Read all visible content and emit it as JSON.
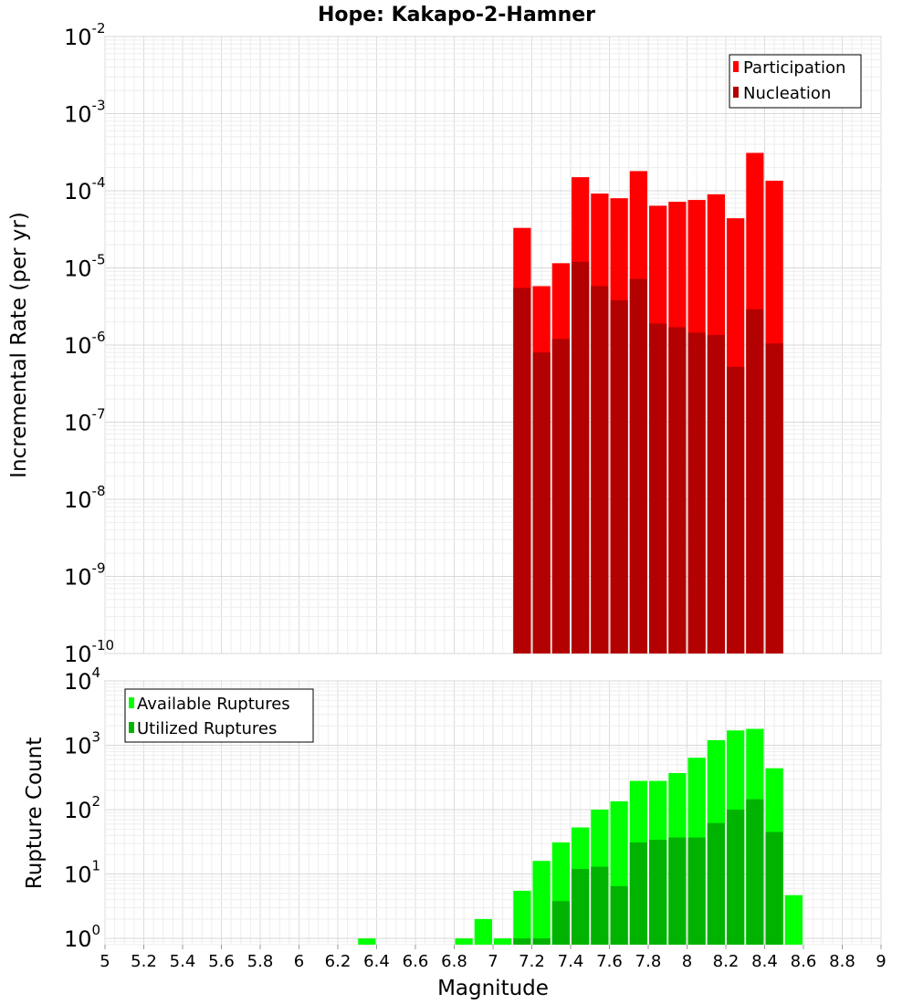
{
  "chart_data": [
    {
      "type": "bar",
      "title": "Hope: Kakapo-2-Hamner",
      "ylabel": "Incremental Rate (per yr)",
      "xlabel": "",
      "yscale": "log",
      "ylim": [
        1e-10,
        0.01
      ],
      "xlim": [
        5,
        9
      ],
      "y_tick_exponents": [
        "-2",
        "-3",
        "-4",
        "-5",
        "-6",
        "-7",
        "-8",
        "-9",
        "-10"
      ],
      "y_tick_base": "10",
      "legend_placement": "top-right",
      "grid": true,
      "x": [
        7.15,
        7.25,
        7.35,
        7.45,
        7.55,
        7.65,
        7.75,
        7.85,
        7.95,
        8.05,
        8.15,
        8.25,
        8.35,
        8.45
      ],
      "series": [
        {
          "name": "Participation",
          "color": "#ff0000",
          "values": [
            3.3e-05,
            5.8e-06,
            1.15e-05,
            0.00015,
            9.2e-05,
            8e-05,
            0.00018,
            6.4e-05,
            7.2e-05,
            7.6e-05,
            9e-05,
            4.4e-05,
            0.00031,
            0.000135
          ]
        },
        {
          "name": "Nucleation",
          "color": "#b30000",
          "values": [
            5.5e-06,
            8e-07,
            1.2e-06,
            1.2e-05,
            5.8e-06,
            3.8e-06,
            7.2e-06,
            1.9e-06,
            1.7e-06,
            1.45e-06,
            1.35e-06,
            5.2e-07,
            2.9e-06,
            1.05e-06
          ]
        }
      ]
    },
    {
      "type": "bar",
      "title": "",
      "ylabel": "Rupture Count",
      "xlabel": "Magnitude",
      "yscale": "log",
      "ylim": [
        0.8,
        10000
      ],
      "xlim": [
        5,
        9
      ],
      "y_tick_exponents": [
        "4",
        "3",
        "2",
        "1",
        "0"
      ],
      "y_tick_base": "10",
      "x_ticks": [
        "5",
        "5.2",
        "5.4",
        "5.6",
        "5.8",
        "6",
        "6.2",
        "6.4",
        "6.6",
        "6.8",
        "7",
        "7.2",
        "7.4",
        "7.6",
        "7.8",
        "8",
        "8.2",
        "8.4",
        "8.6",
        "8.8",
        "9"
      ],
      "legend_placement": "top-left",
      "grid": true,
      "x": [
        6.35,
        6.85,
        6.95,
        7.05,
        7.15,
        7.25,
        7.35,
        7.45,
        7.55,
        7.65,
        7.75,
        7.85,
        7.95,
        8.05,
        8.15,
        8.25,
        8.35,
        8.45,
        8.55
      ],
      "series": [
        {
          "name": "Available Ruptures",
          "color": "#00ff00",
          "values": [
            1,
            1,
            2,
            1,
            5.5,
            16,
            31,
            53,
            100,
            135,
            280,
            280,
            370,
            640,
            1200,
            1700,
            1800,
            440,
            4.7
          ]
        },
        {
          "name": "Utilized Ruptures",
          "color": "#00b300",
          "values": [
            0,
            0,
            0,
            0,
            1,
            1,
            3.8,
            12,
            13,
            6.5,
            31,
            34,
            37,
            37,
            62,
            100,
            145,
            45,
            0
          ]
        }
      ]
    }
  ]
}
